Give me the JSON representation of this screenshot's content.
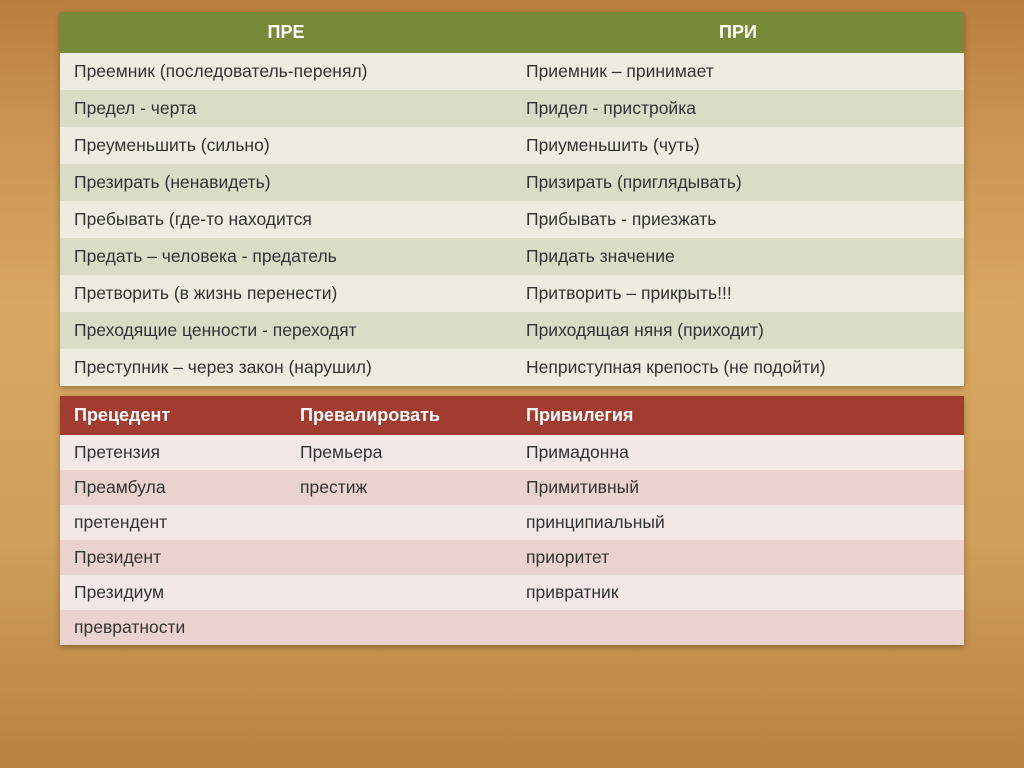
{
  "top_table": {
    "type": "table",
    "header_bg": "#778a38",
    "header_color": "#ffffff",
    "row_odd_bg": "#ecede0",
    "row_even_bg": "#d9dcc7",
    "text_color": "#333333",
    "font_size": 17.5,
    "columns": [
      "ПРЕ",
      "ПРИ"
    ],
    "rows": [
      [
        "Преемник (последователь-перенял)",
        "Приемник – принимает"
      ],
      [
        "Предел - черта",
        "Придел - пристройка"
      ],
      [
        "Преуменьшить (сильно)",
        "Приуменьшить (чуть)"
      ],
      [
        "Презирать (ненавидеть)",
        "Призирать (приглядывать)"
      ],
      [
        "Пребывать (где-то находится",
        "Прибывать - приезжать"
      ],
      [
        "Предать – человека - предатель",
        "Придать значение"
      ],
      [
        "Претворить (в жизнь перенести)",
        "Притворить – прикрыть!!!"
      ],
      [
        "Преходящие ценности - переходят",
        "Приходящая няня (приходит)"
      ],
      [
        "Преступник – через закон (нарушил)",
        "Неприступная крепость (не подойти)"
      ]
    ]
  },
  "bottom_table": {
    "type": "table",
    "header_bg": "#a23b30",
    "header_color": "#ffffff",
    "row_odd_bg": "#f2e8e6",
    "row_even_bg": "#ead3cf",
    "text_color": "#333333",
    "font_size": 17.5,
    "columns": [
      "Прецедент",
      "Превалировать",
      "Привилегия",
      ""
    ],
    "rows": [
      [
        "Претензия",
        "Премьера",
        "Примадонна",
        ""
      ],
      [
        "Преамбула",
        "престиж",
        "Примитивный",
        ""
      ],
      [
        "претендент",
        "",
        "принципиальный",
        ""
      ],
      [
        "Президент",
        "",
        "приоритет",
        ""
      ],
      [
        "Президиум",
        "",
        "привратник",
        ""
      ],
      [
        "превратности",
        "",
        "",
        ""
      ]
    ]
  },
  "background": {
    "gradient_colors": [
      "#b97e3e",
      "#c99250",
      "#d8a862",
      "#cfa05a",
      "#b8823f"
    ]
  }
}
